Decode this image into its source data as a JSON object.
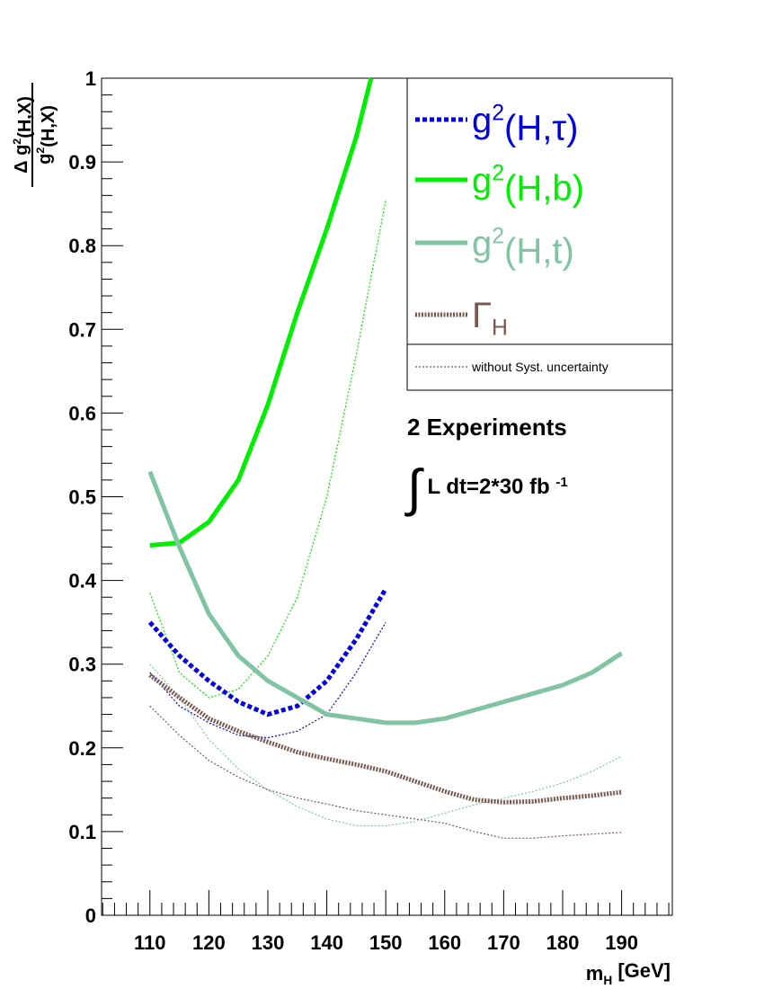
{
  "chart_data": {
    "type": "line",
    "y_label": {
      "numerator": "Δ g^2(H,X)",
      "denominator": "g^2(H,X)"
    },
    "x_label": "m_H [GeV]",
    "xlim": [
      101.8,
      198.6
    ],
    "xticks": [
      110,
      120,
      130,
      140,
      150,
      160,
      170,
      180,
      190
    ],
    "ylim": [
      0,
      1
    ],
    "yticks": [
      0,
      0.1,
      0.2,
      0.3,
      0.4,
      0.5,
      0.6,
      0.7,
      0.8,
      0.9,
      1
    ],
    "series": [
      {
        "name": "g^2(H,τ)",
        "color": "#0000e0",
        "style": "dashed",
        "x": [
          110,
          115,
          120,
          125,
          130,
          135,
          140,
          145,
          150
        ],
        "values": [
          0.35,
          0.31,
          0.28,
          0.255,
          0.24,
          0.25,
          0.28,
          0.33,
          0.39
        ]
      },
      {
        "name": "g^2(H,b)",
        "color": "#00ee00",
        "style": "solid",
        "x": [
          110,
          115,
          120,
          125,
          130,
          135,
          140,
          145,
          147.5
        ],
        "values": [
          0.442,
          0.445,
          0.47,
          0.52,
          0.61,
          0.72,
          0.82,
          0.93,
          1.0
        ]
      },
      {
        "name": "g^2(H,t)",
        "color": "#80c4a4",
        "style": "solid",
        "x": [
          110,
          115,
          120,
          125,
          130,
          135,
          140,
          145,
          150,
          155,
          160,
          165,
          170,
          175,
          180,
          185,
          190
        ],
        "values": [
          0.53,
          0.44,
          0.36,
          0.31,
          0.28,
          0.26,
          0.24,
          0.235,
          0.23,
          0.23,
          0.235,
          0.245,
          0.255,
          0.265,
          0.275,
          0.29,
          0.313
        ]
      },
      {
        "name": "Γ_H",
        "color": "#7a5a50",
        "style": "dotted",
        "x": [
          110,
          115,
          120,
          125,
          130,
          135,
          140,
          145,
          150,
          155,
          160,
          165,
          170,
          175,
          180,
          185,
          190
        ],
        "values": [
          0.287,
          0.26,
          0.235,
          0.22,
          0.207,
          0.195,
          0.187,
          0.18,
          0.172,
          0.16,
          0.148,
          0.138,
          0.135,
          0.136,
          0.14,
          0.143,
          0.147
        ]
      }
    ],
    "no_syst_label": "without Syst. uncertainty",
    "no_syst_color": "#7a5a50",
    "no_syst_series": [
      {
        "color": "#0000e0",
        "x": [
          110,
          115,
          120,
          125,
          130,
          135,
          140,
          145,
          150
        ],
        "values": [
          0.29,
          0.25,
          0.23,
          0.215,
          0.212,
          0.22,
          0.24,
          0.29,
          0.35
        ]
      },
      {
        "color": "#00ee00",
        "x": [
          110,
          115,
          120,
          125,
          130,
          135,
          140,
          145,
          150
        ],
        "values": [
          0.385,
          0.29,
          0.26,
          0.27,
          0.31,
          0.38,
          0.5,
          0.67,
          0.855
        ]
      },
      {
        "color": "#80c4a4",
        "x": [
          110,
          115,
          120,
          125,
          130,
          135,
          140,
          145,
          150,
          155,
          160,
          165,
          170,
          175,
          180,
          185,
          190
        ],
        "values": [
          0.3,
          0.26,
          0.21,
          0.175,
          0.15,
          0.13,
          0.115,
          0.107,
          0.107,
          0.112,
          0.122,
          0.132,
          0.14,
          0.148,
          0.158,
          0.172,
          0.19
        ]
      },
      {
        "color": "#7a5a50",
        "x": [
          110,
          115,
          120,
          125,
          130,
          135,
          140,
          145,
          150,
          155,
          160,
          165,
          170,
          175,
          180,
          185,
          190
        ],
        "values": [
          0.25,
          0.215,
          0.185,
          0.165,
          0.15,
          0.14,
          0.133,
          0.125,
          0.12,
          0.115,
          0.11,
          0.1,
          0.092,
          0.092,
          0.095,
          0.097,
          0.099
        ]
      }
    ],
    "annotations": [
      "2 Experiments",
      "∫ L dt=2*30 fb ^-1"
    ]
  }
}
